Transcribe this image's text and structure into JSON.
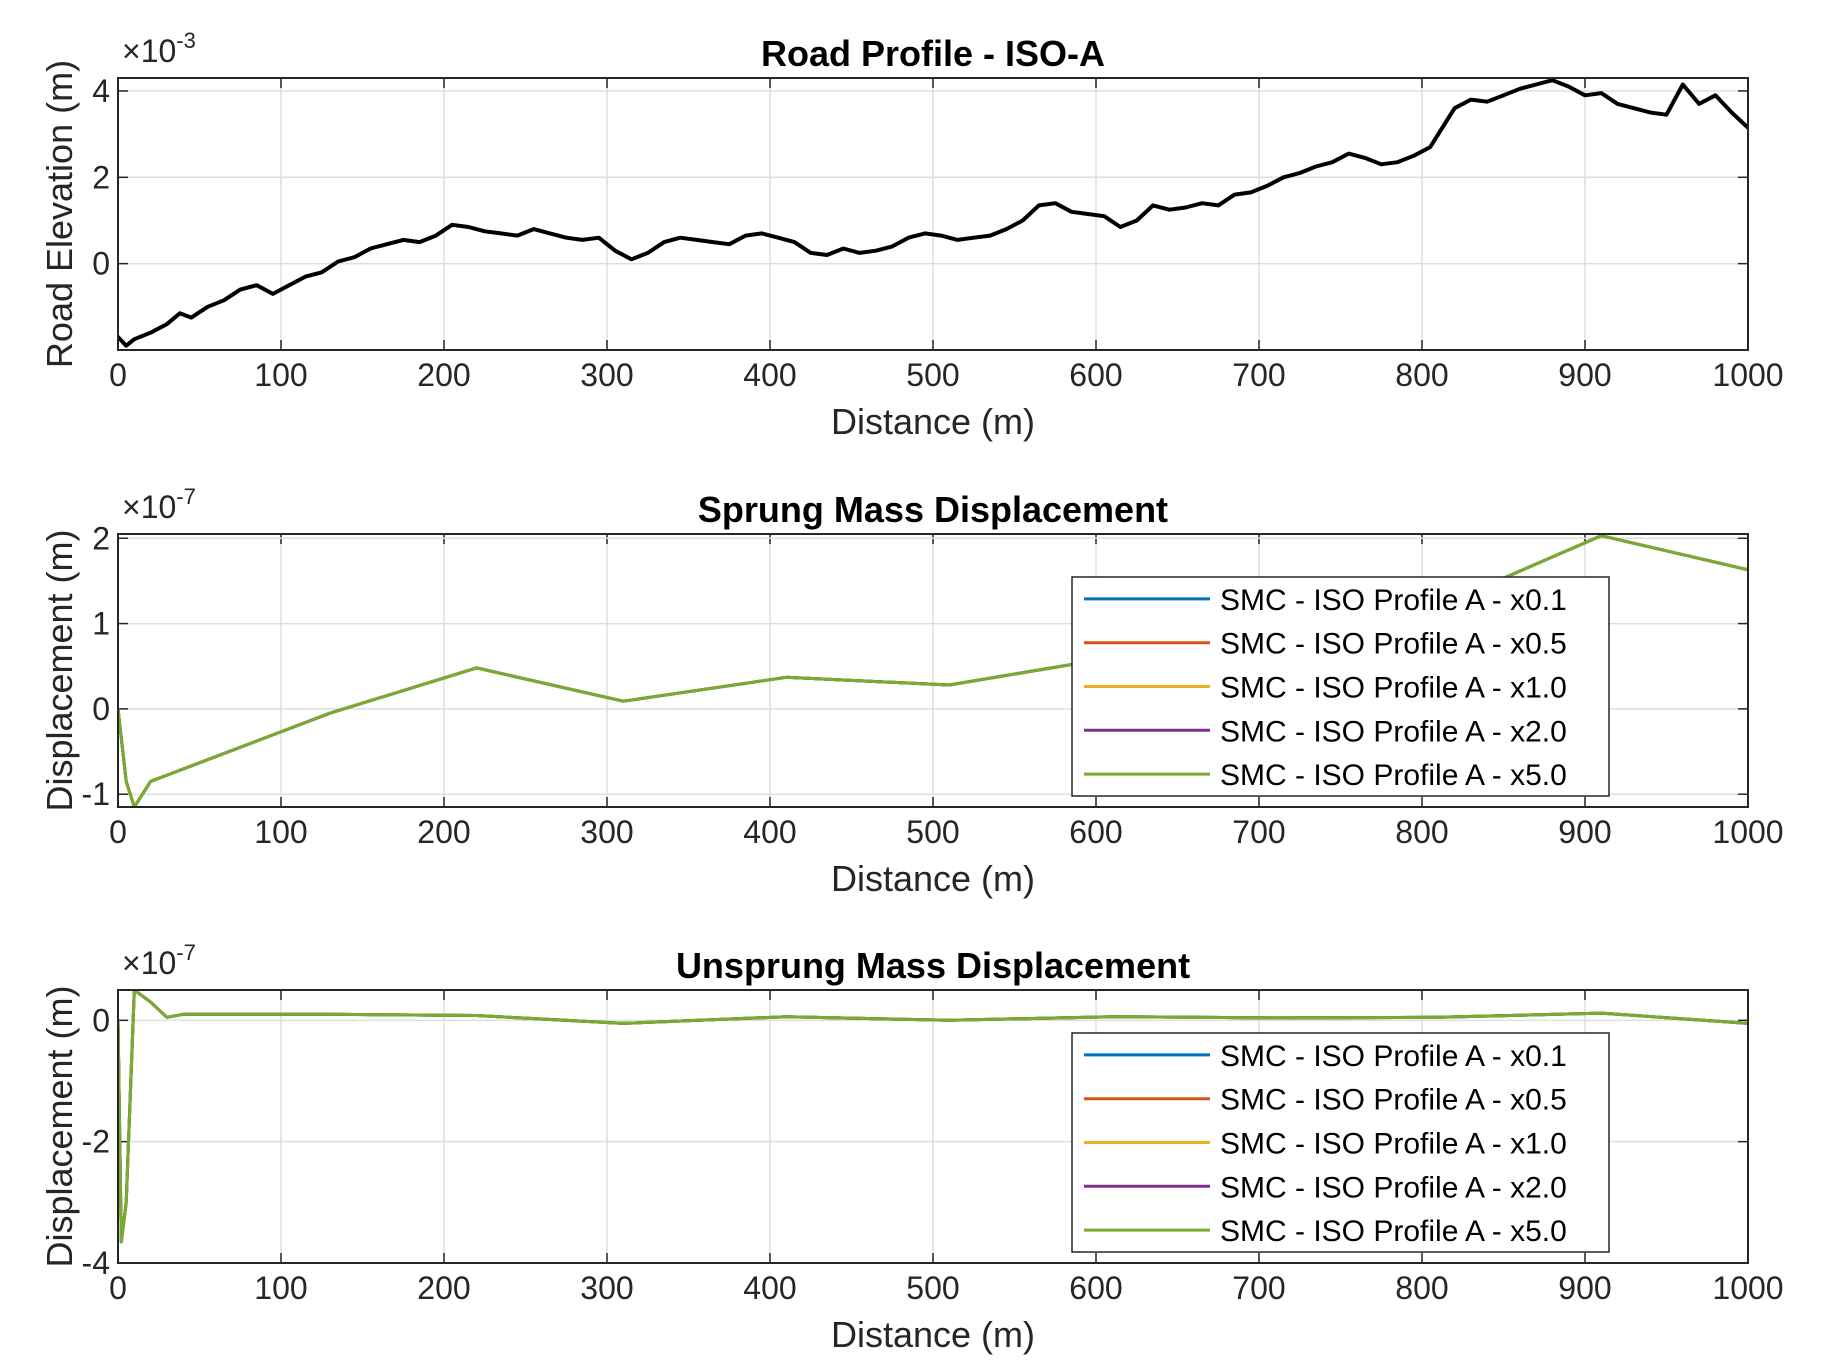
{
  "figure": {
    "colors": {
      "road": "#000000",
      "grid": "#dfdfdf",
      "axis": "#262626",
      "series": [
        "#0072BD",
        "#D95319",
        "#EDB120",
        "#7E2F8E",
        "#77AC30"
      ]
    }
  },
  "chart_data": [
    {
      "type": "line",
      "title": "Road Profile - ISO-A",
      "xlabel": "Distance (m)",
      "ylabel": "Road Elevation (m)",
      "y_exponent_base": "×10",
      "y_exponent_power": "-3",
      "xlim": [
        0,
        1000
      ],
      "ylim": [
        -2.0,
        4.3
      ],
      "xticks": [
        "0",
        "100",
        "200",
        "300",
        "400",
        "500",
        "600",
        "700",
        "800",
        "900",
        "1000"
      ],
      "yticks": [
        {
          "value": 0,
          "label": "0"
        },
        {
          "value": 2,
          "label": "2"
        },
        {
          "value": 4,
          "label": "4"
        }
      ],
      "grid": true,
      "legend": null,
      "series": [
        {
          "color": "#000000",
          "x": [
            0,
            5,
            10,
            20,
            30,
            38,
            45,
            55,
            65,
            75,
            85,
            95,
            105,
            115,
            125,
            135,
            145,
            155,
            165,
            175,
            185,
            195,
            205,
            215,
            225,
            235,
            245,
            255,
            265,
            275,
            285,
            295,
            305,
            315,
            325,
            335,
            345,
            355,
            365,
            375,
            385,
            395,
            405,
            415,
            425,
            435,
            445,
            455,
            465,
            475,
            485,
            495,
            505,
            515,
            525,
            535,
            545,
            555,
            565,
            575,
            585,
            595,
            605,
            615,
            625,
            635,
            645,
            655,
            665,
            675,
            685,
            695,
            705,
            715,
            725,
            735,
            745,
            755,
            765,
            775,
            785,
            795,
            805,
            815,
            820,
            830,
            840,
            850,
            860,
            870,
            880,
            890,
            900,
            910,
            920,
            930,
            940,
            950,
            960,
            970,
            980,
            990,
            1000
          ],
          "y": [
            -1.7,
            -1.9,
            -1.75,
            -1.6,
            -1.4,
            -1.15,
            -1.25,
            -1.0,
            -0.85,
            -0.6,
            -0.5,
            -0.7,
            -0.5,
            -0.3,
            -0.2,
            0.05,
            0.15,
            0.35,
            0.45,
            0.55,
            0.5,
            0.65,
            0.9,
            0.85,
            0.75,
            0.7,
            0.65,
            0.8,
            0.7,
            0.6,
            0.55,
            0.6,
            0.3,
            0.1,
            0.25,
            0.5,
            0.6,
            0.55,
            0.5,
            0.45,
            0.65,
            0.7,
            0.6,
            0.5,
            0.25,
            0.2,
            0.35,
            0.25,
            0.3,
            0.4,
            0.6,
            0.7,
            0.65,
            0.55,
            0.6,
            0.65,
            0.8,
            1.0,
            1.35,
            1.4,
            1.2,
            1.15,
            1.1,
            0.85,
            1.0,
            1.35,
            1.25,
            1.3,
            1.4,
            1.35,
            1.6,
            1.65,
            1.8,
            2.0,
            2.1,
            2.25,
            2.35,
            2.55,
            2.45,
            2.3,
            2.35,
            2.5,
            2.7,
            3.3,
            3.6,
            3.8,
            3.75,
            3.9,
            4.05,
            4.15,
            4.25,
            4.1,
            3.9,
            3.95,
            3.7,
            3.6,
            3.5,
            3.45,
            4.15,
            3.7,
            3.9,
            3.5,
            3.15
          ]
        }
      ]
    },
    {
      "type": "line",
      "title": "Sprung Mass Displacement",
      "xlabel": "Distance (m)",
      "ylabel": "Displacement (m)",
      "y_exponent_base": "×10",
      "y_exponent_power": "-7",
      "xlim": [
        0,
        1000
      ],
      "ylim": [
        -1.15,
        2.05
      ],
      "xticks": [
        "0",
        "100",
        "200",
        "300",
        "400",
        "500",
        "600",
        "700",
        "800",
        "900",
        "1000"
      ],
      "yticks": [
        {
          "value": -1,
          "label": "-1"
        },
        {
          "value": 0,
          "label": "0"
        },
        {
          "value": 1,
          "label": "1"
        },
        {
          "value": 2,
          "label": "2"
        }
      ],
      "grid": true,
      "legend": "lower-right",
      "series": [
        {
          "name": "SMC - ISO Profile A - x0.1",
          "color": "#0072BD",
          "x": [
            0,
            5,
            10,
            20,
            130,
            220,
            310,
            410,
            510,
            610,
            710,
            810,
            910,
            1000
          ],
          "y": [
            0,
            -0.85,
            -1.15,
            -0.85,
            -0.05,
            0.48,
            0.09,
            0.37,
            0.28,
            0.6,
            0.88,
            1.2,
            2.03,
            1.63
          ]
        },
        {
          "name": "SMC - ISO Profile A - x0.5",
          "color": "#D95319",
          "x": [
            0,
            5,
            10,
            20,
            130,
            220,
            310,
            410,
            510,
            610,
            710,
            810,
            910,
            1000
          ],
          "y": [
            0,
            -0.85,
            -1.15,
            -0.85,
            -0.05,
            0.48,
            0.09,
            0.37,
            0.28,
            0.6,
            0.88,
            1.2,
            2.03,
            1.63
          ]
        },
        {
          "name": "SMC - ISO Profile A - x1.0",
          "color": "#EDB120",
          "x": [
            0,
            5,
            10,
            20,
            130,
            220,
            310,
            410,
            510,
            610,
            710,
            810,
            910,
            1000
          ],
          "y": [
            0,
            -0.85,
            -1.15,
            -0.85,
            -0.05,
            0.48,
            0.09,
            0.37,
            0.28,
            0.6,
            0.88,
            1.2,
            2.03,
            1.63
          ]
        },
        {
          "name": "SMC - ISO Profile A - x2.0",
          "color": "#7E2F8E",
          "x": [
            0,
            5,
            10,
            20,
            130,
            220,
            310,
            410,
            510,
            610,
            710,
            810,
            910,
            1000
          ],
          "y": [
            0,
            -0.85,
            -1.15,
            -0.85,
            -0.05,
            0.48,
            0.09,
            0.37,
            0.28,
            0.6,
            0.88,
            1.2,
            2.03,
            1.63
          ]
        },
        {
          "name": "SMC - ISO Profile A - x5.0",
          "color": "#77AC30",
          "x": [
            0,
            5,
            10,
            20,
            130,
            220,
            310,
            410,
            510,
            610,
            710,
            810,
            910,
            1000
          ],
          "y": [
            0,
            -0.85,
            -1.15,
            -0.85,
            -0.05,
            0.48,
            0.09,
            0.37,
            0.28,
            0.6,
            0.88,
            1.2,
            2.03,
            1.63
          ]
        }
      ]
    },
    {
      "type": "line",
      "title": "Unsprung Mass Displacement",
      "xlabel": "Distance (m)",
      "ylabel": "Displacement (m)",
      "y_exponent_base": "×10",
      "y_exponent_power": "-7",
      "xlim": [
        0,
        1000
      ],
      "ylim": [
        -4,
        0.5
      ],
      "xticks": [
        "0",
        "100",
        "200",
        "300",
        "400",
        "500",
        "600",
        "700",
        "800",
        "900",
        "1000"
      ],
      "yticks": [
        {
          "value": -4,
          "label": "-4"
        },
        {
          "value": -2,
          "label": "-2"
        },
        {
          "value": 0,
          "label": "0"
        }
      ],
      "grid": true,
      "legend": "lower-right",
      "series": [
        {
          "name": "SMC - ISO Profile A - x0.1",
          "color": "#0072BD",
          "x": [
            0,
            2,
            5,
            10,
            20,
            30,
            40,
            130,
            220,
            310,
            410,
            510,
            610,
            710,
            810,
            910,
            1000
          ],
          "y": [
            0,
            -3.65,
            -3.0,
            0.5,
            0.3,
            0.05,
            0.1,
            0.1,
            0.08,
            -0.05,
            0.06,
            0.0,
            0.06,
            0.04,
            0.05,
            0.12,
            -0.05
          ]
        },
        {
          "name": "SMC - ISO Profile A - x0.5",
          "color": "#D95319",
          "x": [
            0,
            2,
            5,
            10,
            20,
            30,
            40,
            130,
            220,
            310,
            410,
            510,
            610,
            710,
            810,
            910,
            1000
          ],
          "y": [
            0,
            -3.65,
            -3.0,
            0.5,
            0.3,
            0.05,
            0.1,
            0.1,
            0.08,
            -0.05,
            0.06,
            0.0,
            0.06,
            0.04,
            0.05,
            0.12,
            -0.05
          ]
        },
        {
          "name": "SMC - ISO Profile A - x1.0",
          "color": "#EDB120",
          "x": [
            0,
            2,
            5,
            10,
            20,
            30,
            40,
            130,
            220,
            310,
            410,
            510,
            610,
            710,
            810,
            910,
            1000
          ],
          "y": [
            0,
            -3.65,
            -3.0,
            0.5,
            0.3,
            0.05,
            0.1,
            0.1,
            0.08,
            -0.05,
            0.06,
            0.0,
            0.06,
            0.04,
            0.05,
            0.12,
            -0.05
          ]
        },
        {
          "name": "SMC - ISO Profile A - x2.0",
          "color": "#7E2F8E",
          "x": [
            0,
            2,
            5,
            10,
            20,
            30,
            40,
            130,
            220,
            310,
            410,
            510,
            610,
            710,
            810,
            910,
            1000
          ],
          "y": [
            0,
            -3.65,
            -3.0,
            0.5,
            0.3,
            0.05,
            0.1,
            0.1,
            0.08,
            -0.05,
            0.06,
            0.0,
            0.06,
            0.04,
            0.05,
            0.12,
            -0.05
          ]
        },
        {
          "name": "SMC - ISO Profile A - x5.0",
          "color": "#77AC30",
          "x": [
            0,
            2,
            5,
            10,
            20,
            30,
            40,
            130,
            220,
            310,
            410,
            510,
            610,
            710,
            810,
            910,
            1000
          ],
          "y": [
            0,
            -3.65,
            -3.0,
            0.5,
            0.3,
            0.05,
            0.1,
            0.1,
            0.08,
            -0.05,
            0.06,
            0.0,
            0.06,
            0.04,
            0.05,
            0.12,
            -0.05
          ]
        }
      ]
    }
  ]
}
